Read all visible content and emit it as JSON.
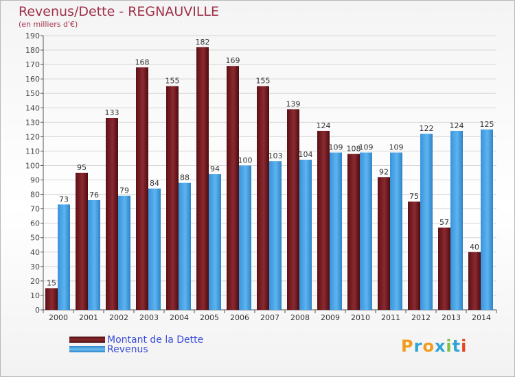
{
  "title": "Revenus/Dette - REGNAUVILLE",
  "subtitle": "(en milliers d'€)",
  "legend": [
    {
      "label": "Montant de la Dette",
      "color": "#7a1c22"
    },
    {
      "label": "Revenus",
      "color": "#4aa3e6"
    }
  ],
  "logo": {
    "text": "Proxiti",
    "letters": [
      "P",
      "r",
      "o",
      "x",
      "i",
      "t",
      "i"
    ],
    "colors": [
      "#f29b1d",
      "#2fa4d6",
      "#f29b1d",
      "#2fa4d6",
      "#7cc242",
      "#2fa4d6",
      "#e2451f"
    ]
  },
  "chart_data": {
    "type": "bar",
    "categories": [
      "2000",
      "2001",
      "2002",
      "2003",
      "2004",
      "2005",
      "2006",
      "2007",
      "2008",
      "2009",
      "2010",
      "2011",
      "2012",
      "2013",
      "2014"
    ],
    "series": [
      {
        "name": "Montant de la Dette",
        "color": "#7a1c22",
        "values": [
          15,
          95,
          133,
          168,
          155,
          182,
          169,
          155,
          139,
          124,
          108,
          92,
          75,
          57,
          40
        ]
      },
      {
        "name": "Revenus",
        "color": "#4aa3e6",
        "values": [
          73,
          76,
          79,
          84,
          88,
          94,
          100,
          103,
          104,
          109,
          109,
          109,
          122,
          124,
          125
        ]
      }
    ],
    "ylim": [
      0,
      190
    ],
    "yticks": [
      0,
      10,
      20,
      30,
      40,
      50,
      60,
      70,
      80,
      90,
      100,
      110,
      120,
      130,
      140,
      150,
      160,
      170,
      180,
      190
    ],
    "grid": true,
    "legend_position": "bottom-left"
  }
}
